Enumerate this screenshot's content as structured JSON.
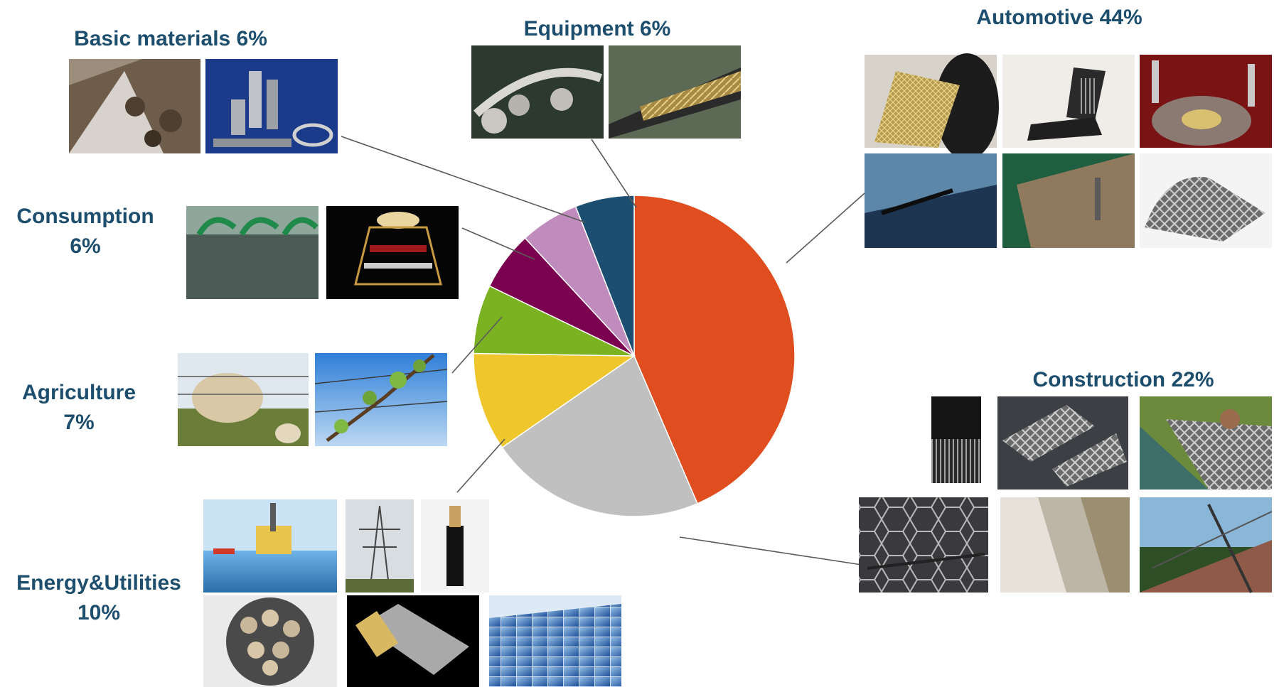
{
  "chart_data": {
    "type": "pie",
    "slices": [
      {
        "label": "Automotive",
        "value": 44,
        "color": "#e04e1f"
      },
      {
        "label": "Construction",
        "value": 22,
        "color": "#c0c0c0"
      },
      {
        "label": "Energy&Utilities",
        "value": 10,
        "color": "#efc72c"
      },
      {
        "label": "Agriculture",
        "value": 7,
        "color": "#7bb222"
      },
      {
        "label": "Consumption",
        "value": 6,
        "color": "#7c0050"
      },
      {
        "label": "Basic materials",
        "value": 6,
        "color": "#c08cbe"
      },
      {
        "label": "Equipment",
        "value": 6,
        "color": "#1b4e70"
      }
    ],
    "start_position": "12 o'clock",
    "direction": "clockwise",
    "legend": "none",
    "labels": {
      "automotive": "Automotive 44%",
      "construction": "Construction 22%",
      "energy_line1": "Energy&Utilities",
      "energy_line2": "10%",
      "agriculture_line1": "Agriculture",
      "agriculture_line2": "7%",
      "consumption_line1": "Consumption",
      "consumption_line2": "6%",
      "basic_materials": "Basic materials 6%",
      "equipment": "Equipment 6%"
    }
  },
  "photos": {
    "basic_materials": [
      "conveyor-belt-photo",
      "filter-cartridges-photo"
    ],
    "equipment": [
      "pulley-belt-photo",
      "braided-hose-photo"
    ],
    "automotive": [
      "tire-cord-photo",
      "car-seat-frame-photo",
      "brake-disc-photo",
      "windscreen-wiper-photo",
      "car-door-photo",
      "metal-strip-photo"
    ],
    "consumption": [
      "green-spiral-binding-photo",
      "wire-lampshade-photo"
    ],
    "agriculture": [
      "longhorn-cattle-fence-photo",
      "orchard-wire-branches-photo"
    ],
    "construction": [
      "steel-cord-bundle-photo",
      "mesh-panels-photo",
      "gabion-wall-photo",
      "hexagonal-netting-photo",
      "facade-mesh-photo",
      "suspension-bridge-photo"
    ],
    "energy": [
      "offshore-platform-photo",
      "power-pylon-photo",
      "armored-cable-photo",
      "cable-cross-section-photo",
      "flexible-hose-photo",
      "solar-panels-photo"
    ]
  },
  "colors": {
    "label_text": "#1d4e6e",
    "leader_line": "#5a5a5a"
  }
}
